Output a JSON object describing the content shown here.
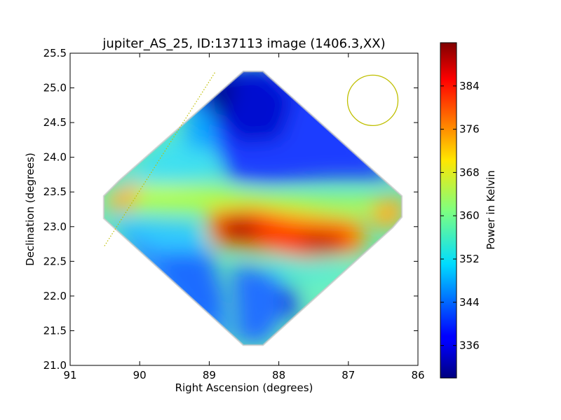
{
  "chart_data": {
    "type": "heatmap",
    "title": "jupiter_AS_25, ID:137113 image (1406.3,XX)",
    "xlabel": "Right Ascension (degrees)",
    "ylabel": "Declination (degrees)",
    "xlim": [
      91,
      86
    ],
    "ylim": [
      21.0,
      25.5
    ],
    "x_ticks": [
      "91",
      "90",
      "89",
      "88",
      "87",
      "86"
    ],
    "y_ticks": [
      "21.0",
      "21.5",
      "22.0",
      "22.5",
      "23.0",
      "23.5",
      "24.0",
      "24.5",
      "25.0",
      "25.5"
    ],
    "colorbar": {
      "label": "Power in Kelvin",
      "range": [
        330,
        392
      ],
      "ticks": [
        "336",
        "344",
        "352",
        "360",
        "368",
        "376",
        "384"
      ],
      "colormap": "jet"
    },
    "map_region": {
      "shape": "diamond",
      "corners": [
        [
          88.3,
          25.25
        ],
        [
          86.2,
          23.2
        ],
        [
          88.3,
          21.27
        ],
        [
          90.55,
          23.2
        ]
      ]
    },
    "hotspots": [
      {
        "ra": 88.6,
        "dec": 23.0,
        "kelvin": 390
      },
      {
        "ra": 87.35,
        "dec": 22.78,
        "kelvin": 390
      }
    ],
    "beam": {
      "ra": 86.65,
      "dec": 24.82,
      "color": "#bfbf00"
    },
    "dotted_line": {
      "from": [
        88.92,
        25.22
      ],
      "to": [
        90.52,
        22.7
      ],
      "color": "#bfbf00"
    },
    "grid": false
  }
}
